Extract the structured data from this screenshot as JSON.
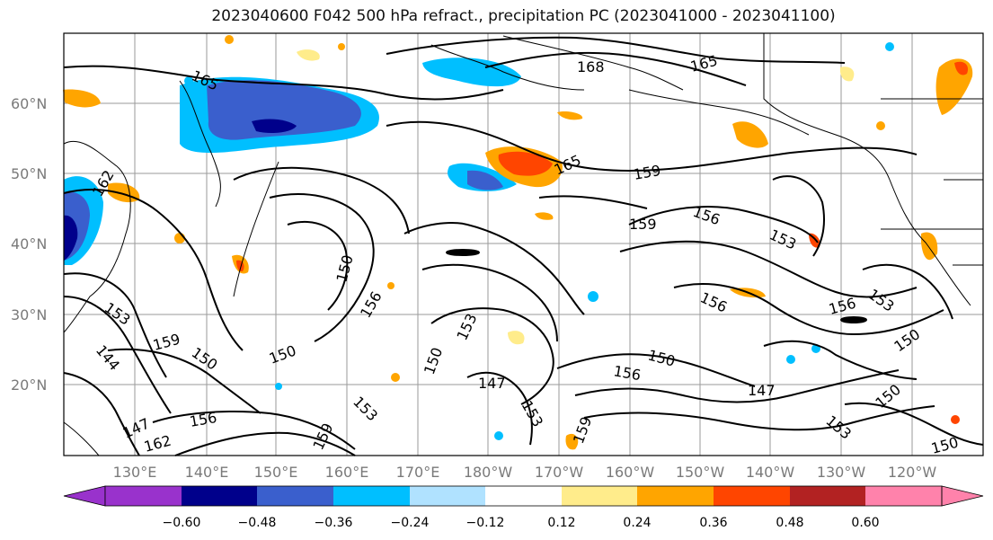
{
  "title": "2023040600 F042 500 hPa refract., precipitation PC (2023041000 - 2023041100)",
  "lat_labels": [
    "60°N",
    "50°N",
    "40°N",
    "30°N",
    "20°N"
  ],
  "lon_labels": [
    "130°E",
    "140°E",
    "150°E",
    "160°E",
    "170°E",
    "180°W",
    "170°W",
    "160°W",
    "150°W",
    "140°W",
    "130°W",
    "120°W"
  ],
  "contour_labels": [
    {
      "text": "165"
    },
    {
      "text": "168"
    },
    {
      "text": "165"
    },
    {
      "text": "165"
    },
    {
      "text": "159"
    },
    {
      "text": "159"
    },
    {
      "text": "156"
    },
    {
      "text": "153"
    },
    {
      "text": "162"
    },
    {
      "text": "150"
    },
    {
      "text": "156"
    },
    {
      "text": "153"
    },
    {
      "text": "159"
    },
    {
      "text": "150"
    },
    {
      "text": "150"
    },
    {
      "text": "153"
    },
    {
      "text": "150"
    },
    {
      "text": "147"
    },
    {
      "text": "153"
    },
    {
      "text": "159"
    },
    {
      "text": "156"
    },
    {
      "text": "150"
    },
    {
      "text": "147"
    },
    {
      "text": "156"
    },
    {
      "text": "153"
    },
    {
      "text": "150"
    },
    {
      "text": "150"
    },
    {
      "text": "153"
    },
    {
      "text": "150"
    },
    {
      "text": "144"
    },
    {
      "text": "147"
    },
    {
      "text": "156"
    },
    {
      "text": "162"
    },
    {
      "text": "159"
    },
    {
      "text": "153"
    },
    {
      "text": "156"
    }
  ],
  "colorbar": {
    "ticks": [
      "−0.60",
      "−0.48",
      "−0.36",
      "−0.24",
      "−0.12",
      "0.12",
      "0.24",
      "0.36",
      "0.48",
      "0.60"
    ],
    "colors": [
      "#9932cc",
      "#00008b",
      "#3a5fcd",
      "#00bfff",
      "#b0e2ff",
      "#ffffff",
      "#ffec8b",
      "#ffa500",
      "#ff4500",
      "#b22222",
      "#ff82ab"
    ]
  }
}
